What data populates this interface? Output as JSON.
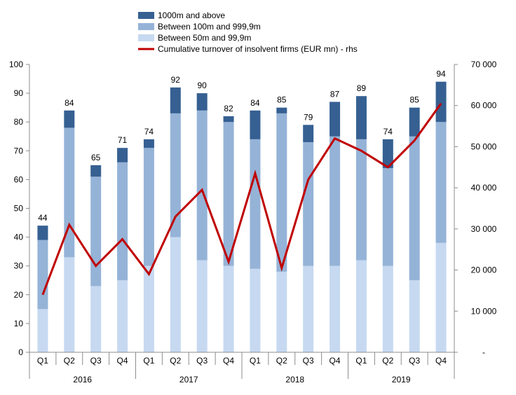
{
  "chart_data": {
    "type": "bar",
    "stacked": true,
    "categories": [
      "Q1",
      "Q2",
      "Q3",
      "Q4",
      "Q1",
      "Q2",
      "Q3",
      "Q4",
      "Q1",
      "Q2",
      "Q3",
      "Q4",
      "Q1",
      "Q2",
      "Q3",
      "Q4"
    ],
    "year_groups": [
      {
        "label": "2016",
        "start": 0,
        "end": 3
      },
      {
        "label": "2017",
        "start": 4,
        "end": 7
      },
      {
        "label": "2018",
        "start": 8,
        "end": 11
      },
      {
        "label": "2019",
        "start": 12,
        "end": 15
      }
    ],
    "series": [
      {
        "name": "Between 50m and 99,9m",
        "color": "#c6d9f1",
        "values": [
          15,
          33,
          23,
          25,
          30,
          40,
          32,
          30,
          29,
          28,
          30,
          30,
          32,
          30,
          25,
          38
        ]
      },
      {
        "name": "Between 100m and 999,9m",
        "color": "#95b3d7",
        "values": [
          24,
          45,
          38,
          41,
          41,
          43,
          52,
          50,
          45,
          55,
          43,
          45,
          42,
          34,
          50,
          42
        ]
      },
      {
        "name": "1000m and above",
        "color": "#366092",
        "values": [
          5,
          6,
          4,
          5,
          3,
          9,
          6,
          2,
          10,
          2,
          6,
          12,
          15,
          10,
          10,
          14
        ]
      }
    ],
    "totals": [
      44,
      84,
      65,
      71,
      74,
      92,
      90,
      82,
      84,
      85,
      79,
      87,
      89,
      74,
      85,
      94
    ],
    "line_series": {
      "name": "Cumulative turnover of insolvent firms (EUR mn) - rhs",
      "color": "#c00000",
      "axis": "right",
      "values": [
        14000,
        31000,
        21000,
        27500,
        19000,
        33000,
        39500,
        22000,
        43500,
        20500,
        42000,
        52000,
        49000,
        45000,
        51500,
        60500
      ]
    },
    "y_left": {
      "min": 0,
      "max": 100,
      "ticks": [
        "0",
        "10",
        "20",
        "30",
        "40",
        "50",
        "60",
        "70",
        "80",
        "90",
        "100"
      ]
    },
    "y_right": {
      "min": 0,
      "max": 70000,
      "ticks": [
        "-",
        "10 000",
        "20 000",
        "30 000",
        "40 000",
        "50 000",
        "60 000",
        "70 000"
      ]
    },
    "legend_position": "top-left",
    "grid": false
  }
}
